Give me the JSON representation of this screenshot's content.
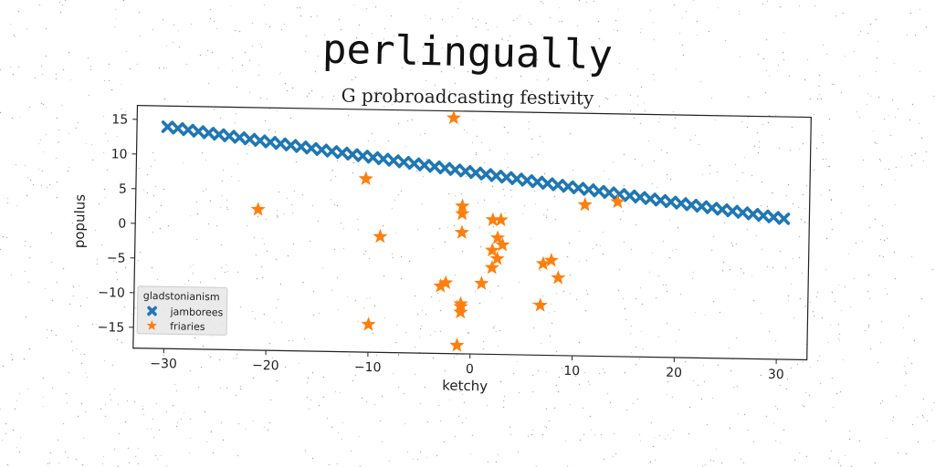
{
  "colors": {
    "jamborees": "#1f77b4",
    "friaries": "#ff7f0e"
  },
  "chart_data": {
    "type": "scatter",
    "title": "perlingually",
    "subtitle": "G probroadcasting festivity",
    "xlabel": "ketchy",
    "ylabel": "populus",
    "xlim": [
      -33,
      33
    ],
    "ylim": [
      -18,
      17
    ],
    "xticks": [
      -30,
      -20,
      -10,
      0,
      10,
      20,
      30
    ],
    "yticks": [
      15,
      10,
      5,
      0,
      -5,
      -10,
      -15
    ],
    "grid": false,
    "legend": {
      "title": "gladstonianism",
      "placement": "lower-left"
    },
    "series": [
      {
        "name": "jamborees",
        "marker": "x",
        "line": {
          "x_start": -30,
          "y_start": 14,
          "x_end": 30.5,
          "y_end": 2.3,
          "count": 61
        }
      },
      {
        "name": "friaries",
        "marker": "star",
        "points": [
          [
            -2,
            16
          ],
          [
            -10.5,
            7
          ],
          [
            -21,
            2.3
          ],
          [
            -9,
            -1.3
          ],
          [
            -1,
            3.3
          ],
          [
            -1,
            2.2
          ],
          [
            -1,
            -0.5
          ],
          [
            2,
            1.4
          ],
          [
            2.8,
            1.4
          ],
          [
            2.5,
            -1.2
          ],
          [
            3,
            -2.2
          ],
          [
            2,
            -3
          ],
          [
            2.5,
            -4.2
          ],
          [
            2,
            -5.5
          ],
          [
            1,
            -7.8
          ],
          [
            -3,
            -8.3
          ],
          [
            -2.5,
            -7.8
          ],
          [
            -1,
            -10.8
          ],
          [
            -1,
            -11.2
          ],
          [
            -1,
            -12
          ],
          [
            -10,
            -14
          ],
          [
            -1.3,
            -16.8
          ],
          [
            7,
            -4.8
          ],
          [
            7.8,
            -4.3
          ],
          [
            8.5,
            -6.8
          ],
          [
            6.8,
            -10.8
          ],
          [
            11,
            3.8
          ],
          [
            14.2,
            4.3
          ]
        ]
      }
    ]
  }
}
